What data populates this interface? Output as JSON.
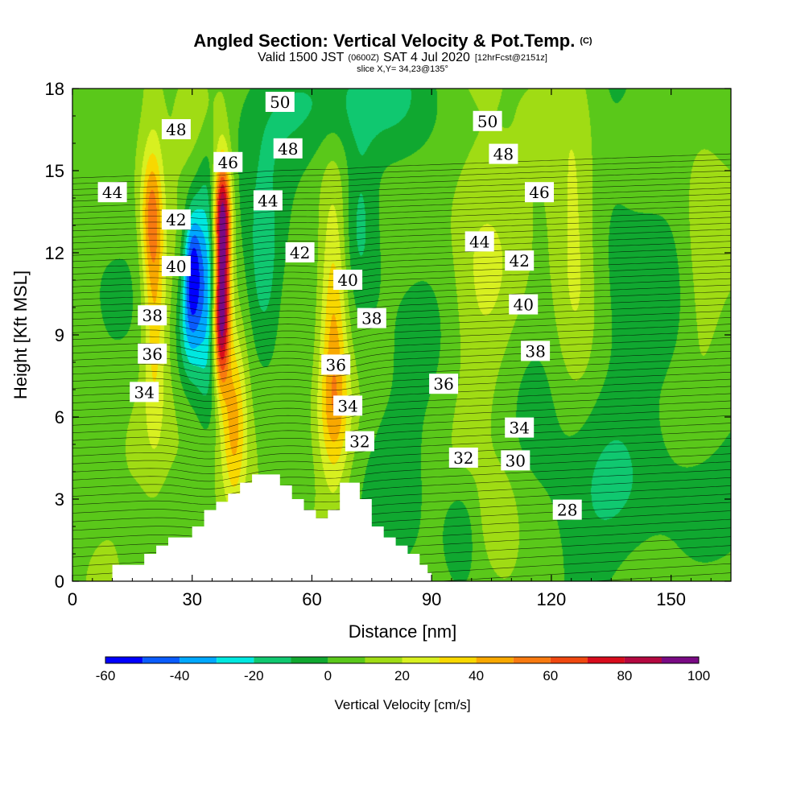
{
  "header": {
    "title": "Angled Section: Vertical Velocity & Pot.Temp.",
    "title_mark": "(C)",
    "valid_main": "Valid 1500 JST",
    "valid_zulu": "(0600Z)",
    "valid_date": "SAT 4 Jul 2020",
    "forecast_info": "[12hrFcst@2151z]",
    "slice": "slice X,Y= 34,23@135°"
  },
  "chart_data": {
    "type": "contour",
    "xlabel": "Distance [nm]",
    "ylabel": "Height [Kft MSL]",
    "xlim": [
      0,
      165
    ],
    "ylim": [
      0,
      18
    ],
    "x_ticks": [
      0,
      30,
      60,
      90,
      120,
      150
    ],
    "y_ticks": [
      0,
      3,
      6,
      9,
      12,
      15,
      18
    ],
    "colorbar": {
      "label": "Vertical Velocity [cm/s]",
      "ticks": [
        -60,
        -40,
        -20,
        0,
        20,
        40,
        60,
        80,
        100
      ],
      "bounds": [
        -60,
        -50,
        -40,
        -30,
        -20,
        -10,
        0,
        10,
        20,
        30,
        40,
        50,
        60,
        70,
        80,
        90,
        100
      ],
      "colors": [
        "#0000ff",
        "#0a5cff",
        "#00a8ff",
        "#00e8e0",
        "#10c870",
        "#10a830",
        "#5ac81a",
        "#a0dc14",
        "#d8f020",
        "#f8d800",
        "#f8a800",
        "#f87a10",
        "#f04810",
        "#d80c1c",
        "#b40840",
        "#7a0a84"
      ]
    },
    "terrain": [
      [
        10,
        0.6
      ],
      [
        18,
        0.6
      ],
      [
        18,
        1.0
      ],
      [
        21,
        1.0
      ],
      [
        21,
        1.3
      ],
      [
        24,
        1.3
      ],
      [
        24,
        1.6
      ],
      [
        30,
        1.6
      ],
      [
        30,
        2.0
      ],
      [
        33,
        2.0
      ],
      [
        33,
        2.6
      ],
      [
        36,
        2.6
      ],
      [
        36,
        2.9
      ],
      [
        39,
        2.9
      ],
      [
        39,
        3.2
      ],
      [
        42,
        3.2
      ],
      [
        42,
        3.6
      ],
      [
        45,
        3.6
      ],
      [
        45,
        3.9
      ],
      [
        52,
        3.9
      ],
      [
        52,
        3.5
      ],
      [
        55,
        3.5
      ],
      [
        55,
        3.0
      ],
      [
        58,
        3.0
      ],
      [
        58,
        2.6
      ],
      [
        61,
        2.6
      ],
      [
        61,
        2.3
      ],
      [
        64,
        2.3
      ],
      [
        64,
        2.6
      ],
      [
        67,
        2.6
      ],
      [
        67,
        3.6
      ],
      [
        72,
        3.6
      ],
      [
        72,
        3.0
      ],
      [
        75,
        3.0
      ],
      [
        75,
        2.0
      ],
      [
        78,
        2.0
      ],
      [
        78,
        1.6
      ],
      [
        81,
        1.6
      ],
      [
        81,
        1.3
      ],
      [
        84,
        1.3
      ],
      [
        84,
        1.0
      ],
      [
        87,
        1.0
      ],
      [
        87,
        0.6
      ],
      [
        89,
        0.6
      ],
      [
        89,
        0.3
      ],
      [
        90,
        0.3
      ],
      [
        90,
        0
      ]
    ],
    "anomalies": [
      {
        "x": 34,
        "y": 11,
        "w": -45,
        "sx": 2.6,
        "sy": 3.0
      },
      {
        "x": 30,
        "y": 11.5,
        "w": -50,
        "sx": 1.6,
        "sy": 1.5
      },
      {
        "x": 29,
        "y": 9.2,
        "w": -25,
        "sx": 2.0,
        "sy": 1.5
      },
      {
        "x": 37.5,
        "y": 11.6,
        "w": 78,
        "sx": 1.5,
        "sy": 2.4
      },
      {
        "x": 37,
        "y": 9.2,
        "w": 55,
        "sx": 1.4,
        "sy": 1.6
      },
      {
        "x": 37.5,
        "y": 13.6,
        "w": 45,
        "sx": 1.6,
        "sy": 1.3
      },
      {
        "x": 40.5,
        "y": 6.0,
        "w": 35,
        "sx": 2.2,
        "sy": 2.3
      },
      {
        "x": 20.5,
        "y": 11.0,
        "w": 35,
        "sx": 2.0,
        "sy": 3.6
      },
      {
        "x": 19.5,
        "y": 13.5,
        "w": 25,
        "sx": 1.8,
        "sy": 1.5
      },
      {
        "x": 65.5,
        "y": 9.0,
        "w": 40,
        "sx": 2.5,
        "sy": 3.6
      },
      {
        "x": 65.5,
        "y": 6.0,
        "w": 20,
        "sx": 4.5,
        "sy": 1.6
      },
      {
        "x": 48,
        "y": 11.0,
        "w": -20,
        "sx": 3.0,
        "sy": 2.4
      },
      {
        "x": 72,
        "y": 13.5,
        "w": -15,
        "sx": 3.0,
        "sy": 2.2
      },
      {
        "x": 72,
        "y": 17.5,
        "w": -15,
        "sx": 12.0,
        "sy": 1.4
      },
      {
        "x": 56,
        "y": 17.0,
        "w": -12,
        "sx": 10.0,
        "sy": 1.6
      },
      {
        "x": 102,
        "y": 11.5,
        "w": 20,
        "sx": 6.5,
        "sy": 4.0
      },
      {
        "x": 126,
        "y": 12.5,
        "w": 22,
        "sx": 4.0,
        "sy": 4.0
      },
      {
        "x": 97,
        "y": 2.0,
        "w": -12,
        "sx": 3.0,
        "sy": 1.2
      },
      {
        "x": 107,
        "y": 2.2,
        "w": 15,
        "sx": 3.5,
        "sy": 1.4
      },
      {
        "x": 136,
        "y": 8.5,
        "w": -12,
        "sx": 10.0,
        "sy": 4.0
      },
      {
        "x": 158,
        "y": 11.5,
        "w": 12,
        "sx": 4.0,
        "sy": 3.5
      },
      {
        "x": 140,
        "y": 3.0,
        "w": -10,
        "sx": 18.0,
        "sy": 2.0
      },
      {
        "x": 85,
        "y": 8.0,
        "w": -10,
        "sx": 10.0,
        "sy": 4.0
      },
      {
        "x": 25,
        "y": 5.0,
        "w": 8,
        "sx": 8.0,
        "sy": 2.5
      },
      {
        "x": 31,
        "y": 17.0,
        "w": 15,
        "sx": 5.0,
        "sy": 1.6
      }
    ],
    "contour_labels": [
      {
        "text": "28",
        "x": 124,
        "y": 2.6
      },
      {
        "text": "30",
        "x": 111,
        "y": 4.4
      },
      {
        "text": "32",
        "x": 98,
        "y": 4.5
      },
      {
        "text": "32",
        "x": 72,
        "y": 5.1
      },
      {
        "text": "34",
        "x": 18,
        "y": 6.9
      },
      {
        "text": "34",
        "x": 69,
        "y": 6.4
      },
      {
        "text": "34",
        "x": 112,
        "y": 5.6
      },
      {
        "text": "36",
        "x": 20,
        "y": 8.3
      },
      {
        "text": "36",
        "x": 66,
        "y": 7.9
      },
      {
        "text": "36",
        "x": 93,
        "y": 7.2
      },
      {
        "text": "38",
        "x": 20,
        "y": 9.7
      },
      {
        "text": "38",
        "x": 75,
        "y": 9.6
      },
      {
        "text": "38",
        "x": 116,
        "y": 8.4
      },
      {
        "text": "40",
        "x": 26,
        "y": 11.5
      },
      {
        "text": "40",
        "x": 69,
        "y": 11.0
      },
      {
        "text": "40",
        "x": 113,
        "y": 10.1
      },
      {
        "text": "42",
        "x": 26,
        "y": 13.2
      },
      {
        "text": "42",
        "x": 57,
        "y": 12.0
      },
      {
        "text": "42",
        "x": 112,
        "y": 11.7
      },
      {
        "text": "44",
        "x": 10,
        "y": 14.2
      },
      {
        "text": "44",
        "x": 49,
        "y": 13.9
      },
      {
        "text": "44",
        "x": 102,
        "y": 12.4
      },
      {
        "text": "46",
        "x": 39,
        "y": 15.3
      },
      {
        "text": "46",
        "x": 117,
        "y": 14.2
      },
      {
        "text": "48",
        "x": 26,
        "y": 16.5
      },
      {
        "text": "48",
        "x": 54,
        "y": 15.8
      },
      {
        "text": "48",
        "x": 108,
        "y": 15.6
      },
      {
        "text": "50",
        "x": 52,
        "y": 17.5
      },
      {
        "text": "50",
        "x": 104,
        "y": 16.8
      }
    ]
  }
}
